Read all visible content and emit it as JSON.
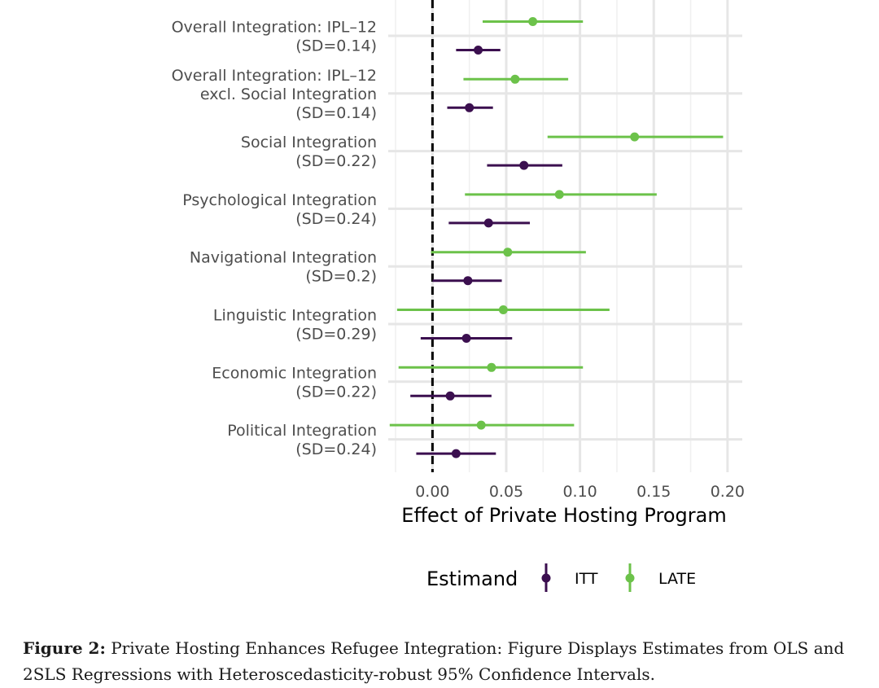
{
  "chart_data": {
    "type": "errorbar",
    "xlabel": "Effect of Private Hosting Program",
    "xlim": [
      -0.03,
      0.21
    ],
    "x_ticks": [
      "0.00",
      "0.05",
      "0.10",
      "0.15",
      "0.20"
    ],
    "x_tick_values": [
      0.0,
      0.05,
      0.1,
      0.15,
      0.2
    ],
    "reference_line": {
      "x": 0,
      "style": "dashed"
    },
    "grid": true,
    "legend": {
      "title": "Estimand",
      "position": "bottom"
    },
    "series": [
      {
        "name": "ITT",
        "color": "#3b0f4f"
      },
      {
        "name": "LATE",
        "color": "#6cc24a"
      }
    ],
    "categories": [
      {
        "label": [
          "Overall Integration: IPL–12",
          "(SD=0.14)"
        ],
        "ITT": {
          "est": 0.031,
          "lo": 0.016,
          "hi": 0.046
        },
        "LATE": {
          "est": 0.068,
          "lo": 0.034,
          "hi": 0.102
        }
      },
      {
        "label": [
          "Overall Integration: IPL–12",
          "excl. Social Integration",
          "(SD=0.14)"
        ],
        "ITT": {
          "est": 0.025,
          "lo": 0.01,
          "hi": 0.041
        },
        "LATE": {
          "est": 0.056,
          "lo": 0.021,
          "hi": 0.092
        }
      },
      {
        "label": [
          "Social Integration",
          "(SD=0.22)"
        ],
        "ITT": {
          "est": 0.062,
          "lo": 0.037,
          "hi": 0.088
        },
        "LATE": {
          "est": 0.137,
          "lo": 0.078,
          "hi": 0.197
        }
      },
      {
        "label": [
          "Psychological Integration",
          "(SD=0.24)"
        ],
        "ITT": {
          "est": 0.038,
          "lo": 0.011,
          "hi": 0.066
        },
        "LATE": {
          "est": 0.086,
          "lo": 0.022,
          "hi": 0.152
        }
      },
      {
        "label": [
          "Navigational Integration",
          "(SD=0.2)"
        ],
        "ITT": {
          "est": 0.024,
          "lo": 0.0,
          "hi": 0.047
        },
        "LATE": {
          "est": 0.051,
          "lo": -0.001,
          "hi": 0.104
        }
      },
      {
        "label": [
          "Linguistic Integration",
          "(SD=0.29)"
        ],
        "ITT": {
          "est": 0.023,
          "lo": -0.008,
          "hi": 0.054
        },
        "LATE": {
          "est": 0.048,
          "lo": -0.024,
          "hi": 0.12
        }
      },
      {
        "label": [
          "Economic Integration",
          "(SD=0.22)"
        ],
        "ITT": {
          "est": 0.012,
          "lo": -0.015,
          "hi": 0.04
        },
        "LATE": {
          "est": 0.04,
          "lo": -0.023,
          "hi": 0.102
        }
      },
      {
        "label": [
          "Political Integration",
          "(SD=0.24)"
        ],
        "ITT": {
          "est": 0.016,
          "lo": -0.011,
          "hi": 0.043
        },
        "LATE": {
          "est": 0.033,
          "lo": -0.029,
          "hi": 0.096
        }
      }
    ]
  },
  "caption": {
    "prefix": "Figure 2:",
    "text": "Private Hosting Enhances Refugee Integration: Figure Displays Estimates from OLS and 2SLS Regressions with Heteroscedasticity-robust 95% Confidence Intervals."
  }
}
